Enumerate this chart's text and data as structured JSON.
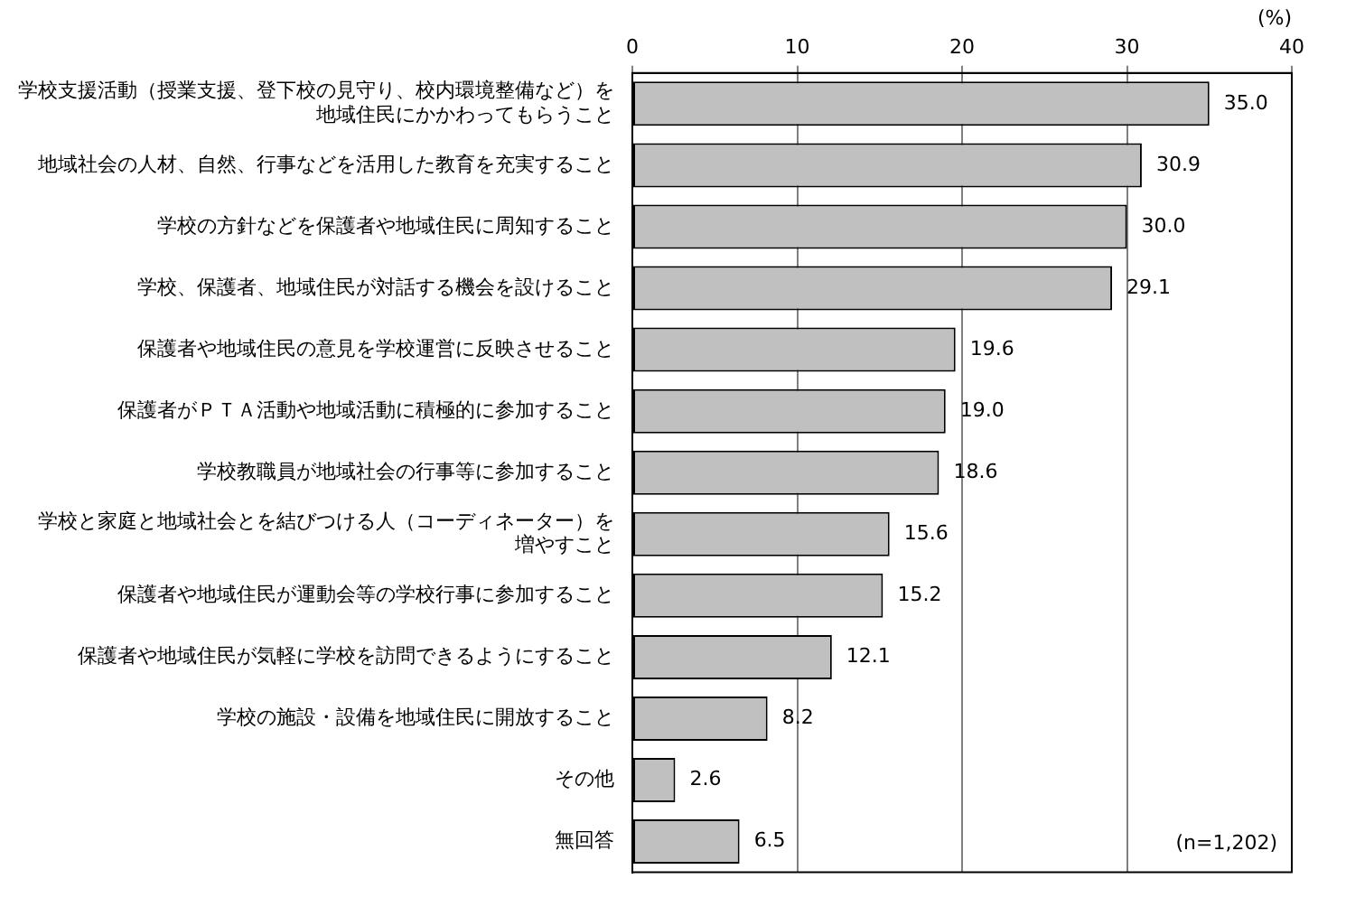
{
  "chart_data": {
    "type": "bar",
    "orientation": "horizontal",
    "xlabel": "(%)",
    "categories": [
      "学校支援活動（授業支援、登下校の見守り、校内環境整備など）を地域住民にかかわってもらうこと",
      "地域社会の人材、自然、行事などを活用した教育を充実すること",
      "学校の方針などを保護者や地域住民に周知すること",
      "学校、保護者、地域住民が対話する機会を設けること",
      "保護者や地域住民の意見を学校運営に反映させること",
      "保護者がＰＴＡ活動や地域活動に積極的に参加すること",
      "学校教職員が地域社会の行事等に参加すること",
      "学校と家庭と地域社会とを結びつける人（コーディネーター）を増やすこと",
      "保護者や地域住民が運動会等の学校行事に参加すること",
      "保護者や地域住民が気軽に学校を訪問できるようにすること",
      "学校の施設・設備を地域住民に開放すること",
      "その他",
      "無回答"
    ],
    "values": [
      35.0,
      30.9,
      30.0,
      29.1,
      19.6,
      19.0,
      18.6,
      15.6,
      15.2,
      12.1,
      8.2,
      2.6,
      6.5
    ],
    "color": "#c0c0c0",
    "xlim": [
      0,
      40
    ],
    "xticks": [
      0,
      10,
      20,
      30,
      40
    ],
    "value_labels": [
      "35.0",
      "30.9",
      "30.0",
      "29.1",
      "19.6",
      "19.0",
      "18.6",
      "15.6",
      "15.2",
      "12.1",
      "8.2",
      "2.6",
      "6.5"
    ],
    "grid": "x",
    "legend": false,
    "annotations": [
      "(n=1,202)"
    ]
  }
}
